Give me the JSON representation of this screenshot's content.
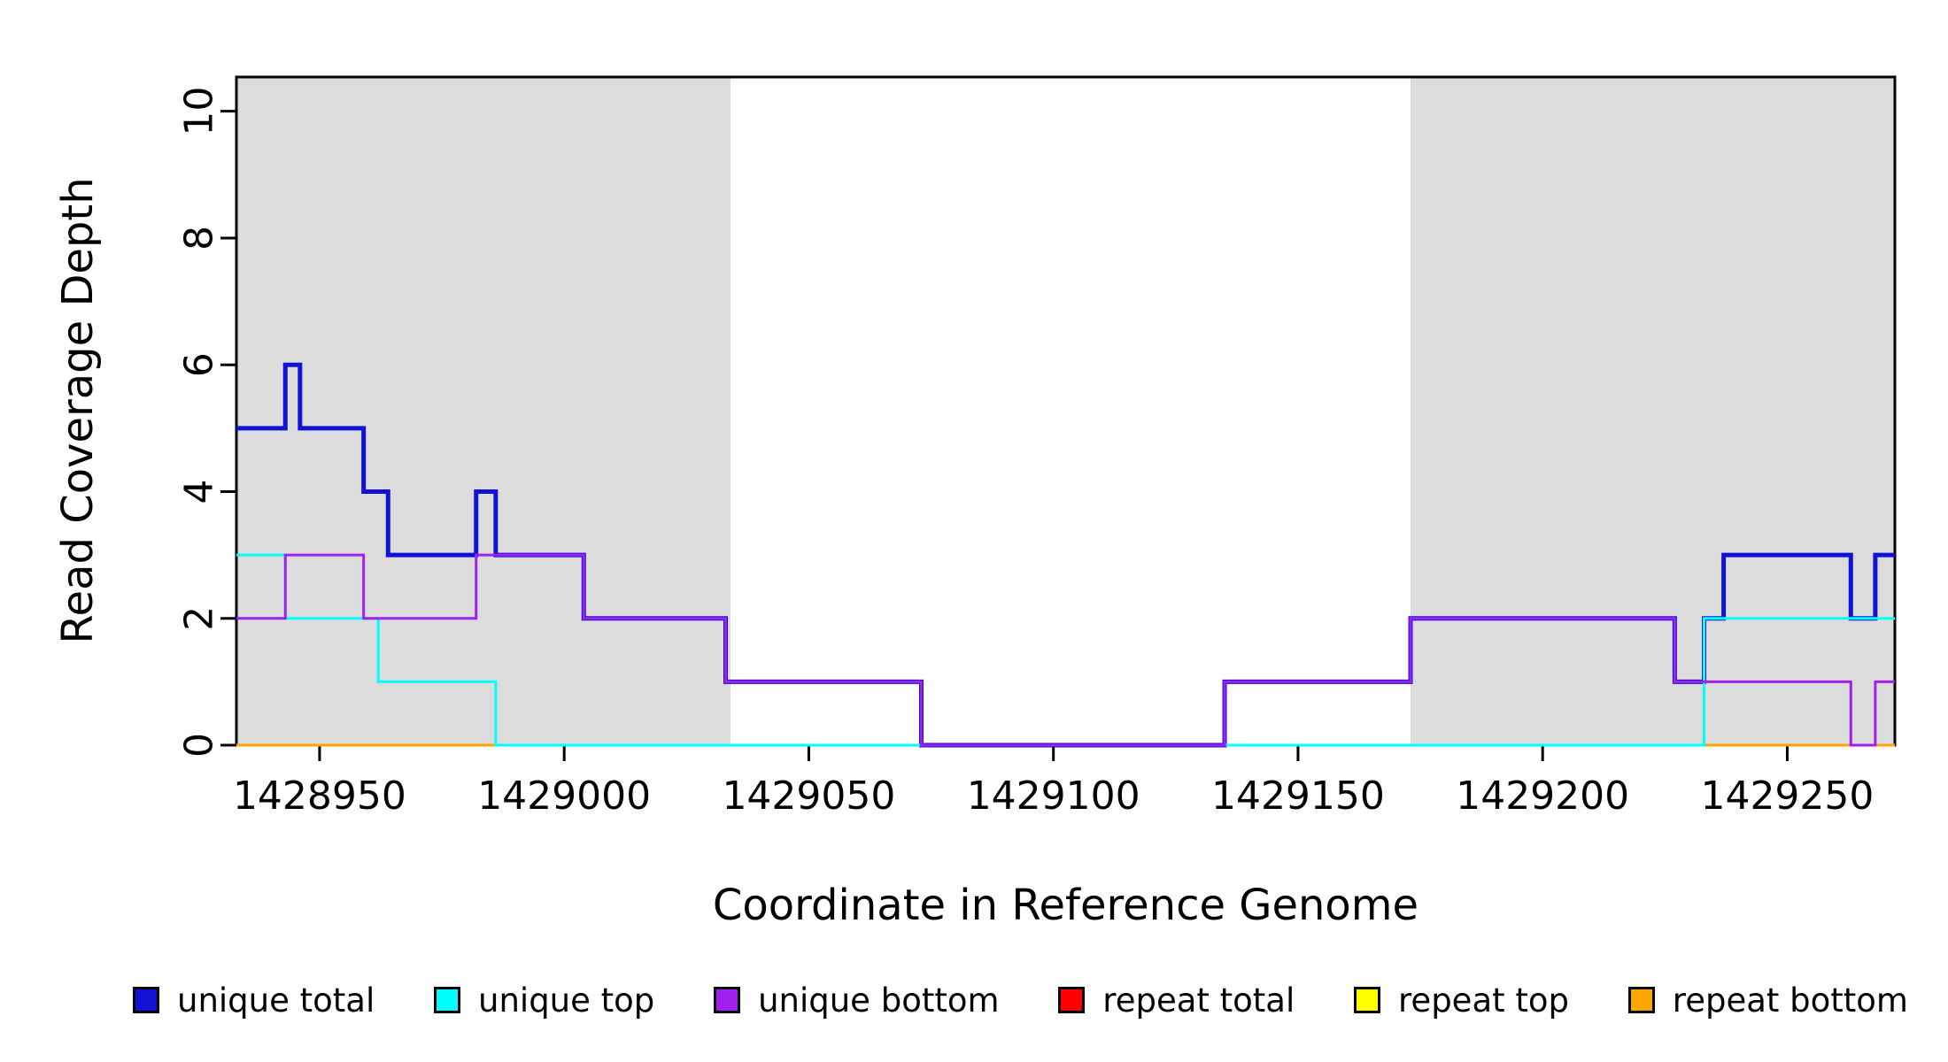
{
  "figure": {
    "xlabel": "Coordinate in Reference Genome",
    "ylabel": "Read Coverage Depth"
  },
  "chart_data": {
    "type": "line",
    "subtype": "step-coverage",
    "title": "",
    "xlabel": "Coordinate in Reference Genome",
    "ylabel": "Read Coverage Depth",
    "xlim": [
      1428933,
      1429272
    ],
    "ylim": [
      0,
      10.54
    ],
    "x_ticks": [
      1428950,
      1429000,
      1429050,
      1429100,
      1429150,
      1429200,
      1429250
    ],
    "y_ticks": [
      0,
      2,
      4,
      6,
      8,
      10
    ],
    "grid": false,
    "legend_position": "bottom",
    "shaded_regions": [
      {
        "start": 1428933,
        "end": 1429034,
        "color": "#DCDCDC"
      },
      {
        "start": 1429173,
        "end": 1429272,
        "color": "#DCDCDC"
      }
    ],
    "draw_order": [
      3,
      4,
      5,
      0,
      1,
      2
    ],
    "series": [
      {
        "name": "unique total",
        "color": "#1212D6",
        "width": 5,
        "steps": [
          [
            1428933,
            5
          ],
          [
            1428943,
            6
          ],
          [
            1428946,
            5
          ],
          [
            1428959,
            4
          ],
          [
            1428964,
            3
          ],
          [
            1428982,
            4
          ],
          [
            1428986,
            3
          ],
          [
            1429004,
            2
          ],
          [
            1429033,
            1
          ],
          [
            1429073,
            0
          ],
          [
            1429135,
            1
          ],
          [
            1429173,
            2
          ],
          [
            1429227,
            1
          ],
          [
            1429233,
            2
          ],
          [
            1429237,
            3
          ],
          [
            1429263,
            2
          ],
          [
            1429268,
            3
          ]
        ]
      },
      {
        "name": "unique top",
        "color": "#00FFFF",
        "width": 3,
        "steps": [
          [
            1428933,
            3
          ],
          [
            1428943,
            2
          ],
          [
            1428962,
            1
          ],
          [
            1428986,
            0
          ],
          [
            1429233,
            2
          ]
        ]
      },
      {
        "name": "unique bottom",
        "color": "#A020F0",
        "width": 3,
        "steps": [
          [
            1428933,
            2
          ],
          [
            1428943,
            3
          ],
          [
            1428959,
            2
          ],
          [
            1428982,
            3
          ],
          [
            1429004,
            2
          ],
          [
            1429033,
            1
          ],
          [
            1429073,
            0
          ],
          [
            1429135,
            1
          ],
          [
            1429173,
            2
          ],
          [
            1429227,
            1
          ],
          [
            1429263,
            0
          ],
          [
            1429268,
            1
          ]
        ]
      },
      {
        "name": "repeat total",
        "color": "#FF0000",
        "width": 3,
        "steps": [
          [
            1428933,
            0
          ]
        ]
      },
      {
        "name": "repeat top",
        "color": "#FFFF00",
        "width": 3,
        "steps": [
          [
            1428933,
            0
          ]
        ]
      },
      {
        "name": "repeat bottom",
        "color": "#FFA500",
        "width": 3,
        "steps": [
          [
            1428933,
            0
          ]
        ]
      }
    ]
  },
  "legend": {
    "items": [
      {
        "label": "unique total",
        "color": "#1212D6"
      },
      {
        "label": "unique top",
        "color": "#00FFFF"
      },
      {
        "label": "unique bottom",
        "color": "#A020F0"
      },
      {
        "label": "repeat total",
        "color": "#FF0000"
      },
      {
        "label": "repeat top",
        "color": "#FFFF00"
      },
      {
        "label": "repeat bottom",
        "color": "#FFA500"
      }
    ]
  }
}
